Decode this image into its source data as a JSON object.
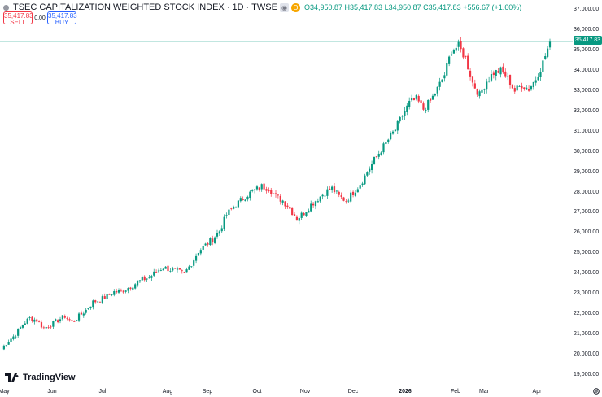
{
  "legend": {
    "title": "TSEC CAPITALIZATION WEIGHTED STOCK INDEX · 1D · TWSE",
    "open": "O34,950.87",
    "high": "H35,417.83",
    "low": "L34,950.87",
    "close": "C35,417.83",
    "change": "+556.67 (+1.60%)",
    "d_badge": "D"
  },
  "trade": {
    "sell_price": "35,417.83",
    "sell_label": "SELL",
    "spread": "0.00",
    "buy_price": "35,417.83",
    "buy_label": "BUY"
  },
  "last_price": "35,417.83",
  "brand": "TradingView",
  "colors": {
    "up": "#089981",
    "down": "#f23645",
    "accent": "#2962ff",
    "badge": "#f7a600"
  },
  "chart_data": {
    "type": "candlestick",
    "y_ticks": [
      "37,000.00",
      "36,000.00",
      "35,000.00",
      "34,000.00",
      "33,000.00",
      "32,000.00",
      "31,000.00",
      "30,000.00",
      "29,000.00",
      "28,000.00",
      "27,000.00",
      "26,000.00",
      "25,000.00",
      "24,000.00",
      "23,000.00",
      "22,000.00",
      "21,000.00",
      "20,000.00",
      "19,000.00"
    ],
    "x_ticks": [
      "May",
      "Jun",
      "Jul",
      "Aug",
      "Sep",
      "Oct",
      "Nov",
      "Dec",
      "2026",
      "Feb",
      "Mar",
      "Apr"
    ],
    "ylim": [
      19000,
      37000
    ],
    "last_value": 35417.83,
    "close_path": [
      [
        0,
        20300
      ],
      [
        3,
        20700
      ],
      [
        6,
        21000
      ],
      [
        9,
        21500
      ],
      [
        12,
        21800
      ],
      [
        15,
        21700
      ],
      [
        18,
        21300
      ],
      [
        21,
        21500
      ],
      [
        24,
        21700
      ],
      [
        27,
        21900
      ],
      [
        30,
        21600
      ],
      [
        33,
        21900
      ],
      [
        36,
        22200
      ],
      [
        39,
        22600
      ],
      [
        42,
        22700
      ],
      [
        45,
        22900
      ],
      [
        48,
        23100
      ],
      [
        51,
        23100
      ],
      [
        54,
        23300
      ],
      [
        57,
        23500
      ],
      [
        60,
        23700
      ],
      [
        63,
        23800
      ],
      [
        66,
        24100
      ],
      [
        69,
        24300
      ],
      [
        72,
        24200
      ],
      [
        75,
        24100
      ],
      [
        78,
        24000
      ],
      [
        81,
        24500
      ],
      [
        84,
        25100
      ],
      [
        87,
        25400
      ],
      [
        90,
        25700
      ],
      [
        93,
        26100
      ],
      [
        96,
        26900
      ],
      [
        99,
        27300
      ],
      [
        102,
        27600
      ],
      [
        105,
        27900
      ],
      [
        108,
        28100
      ],
      [
        111,
        28300
      ],
      [
        114,
        28200
      ],
      [
        117,
        27800
      ],
      [
        120,
        27600
      ],
      [
        123,
        27200
      ],
      [
        126,
        26700
      ],
      [
        129,
        27000
      ],
      [
        132,
        27400
      ],
      [
        135,
        27700
      ],
      [
        138,
        28000
      ],
      [
        141,
        28200
      ],
      [
        144,
        27800
      ],
      [
        147,
        27600
      ],
      [
        150,
        28000
      ],
      [
        153,
        28400
      ],
      [
        156,
        29000
      ],
      [
        159,
        29600
      ],
      [
        162,
        30100
      ],
      [
        165,
        30600
      ],
      [
        168,
        31100
      ],
      [
        171,
        31800
      ],
      [
        174,
        32400
      ],
      [
        177,
        32600
      ],
      [
        180,
        32100
      ],
      [
        183,
        32500
      ],
      [
        186,
        33100
      ],
      [
        189,
        33800
      ],
      [
        192,
        35000
      ],
      [
        195,
        35200
      ],
      [
        198,
        34600
      ],
      [
        201,
        33400
      ],
      [
        204,
        32800
      ],
      [
        207,
        33500
      ],
      [
        210,
        33900
      ],
      [
        213,
        34000
      ],
      [
        216,
        33600
      ],
      [
        219,
        33000
      ],
      [
        222,
        33300
      ],
      [
        225,
        33100
      ],
      [
        228,
        33600
      ],
      [
        231,
        34400
      ],
      [
        234,
        35400
      ]
    ]
  }
}
